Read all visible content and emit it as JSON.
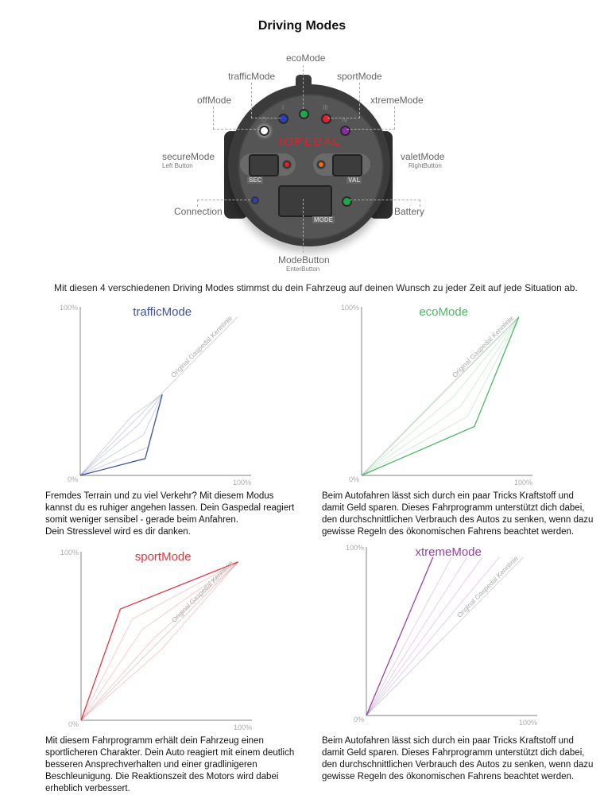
{
  "title": "Driving Modes",
  "device": {
    "brand": "IOPEDAL",
    "labels": {
      "eco": "ecoMode",
      "traffic": "trafficMode",
      "sport": "sportMode",
      "off": "offMode",
      "xtreme": "xtremeMode",
      "secure": "secureMode",
      "secure_sub": "Left Button",
      "valet": "valetMode",
      "valet_sub": "RightButton",
      "connection": "Connection",
      "battery": "Battery",
      "mode_button": "ModeButton",
      "mode_button_sub": "EnterButton"
    },
    "markings": {
      "sec": "SEC",
      "val": "VAL",
      "mode": "MODE",
      "i": "I",
      "ii": "II",
      "iii": "III",
      "iv": "IV",
      "o": "O"
    },
    "led_colors": {
      "off": "#ffffff",
      "traffic": "#2b3fc0",
      "eco": "#1fa84a",
      "sport": "#e8202a",
      "xtreme": "#8a2aa8",
      "secure": "#e8202a",
      "valet": "#f06a10",
      "connection": "#2b3fc0",
      "battery": "#1fa84a"
    }
  },
  "intro": "Mit diesen 4 verschiedenen Driving Modes stimmst du dein Fahrzeug auf deinen Wunsch zu jeder Zeit auf jede Situation ab.",
  "chart_data": [
    {
      "type": "line",
      "title": "trafficMode",
      "color": "#3f51a8",
      "reference_label": "Original Gaspedal Kennlinie",
      "xlim": [
        0,
        100
      ],
      "ylim": [
        0,
        100
      ],
      "tick_labels": {
        "y_top": "100%",
        "origin": "0%",
        "x_right": "100%"
      },
      "reference": [
        [
          0,
          0
        ],
        [
          92,
          94
        ]
      ],
      "series": [
        {
          "values": [
            [
              0,
              0
            ],
            [
              38,
              10
            ],
            [
              48,
              48
            ]
          ]
        }
      ],
      "intermediate": [
        [
          [
            0,
            0
          ],
          [
            40,
            17
          ],
          [
            48,
            48
          ]
        ],
        [
          [
            0,
            0
          ],
          [
            37,
            24
          ],
          [
            48,
            48
          ]
        ],
        [
          [
            0,
            0
          ],
          [
            34,
            30
          ],
          [
            48,
            48
          ]
        ],
        [
          [
            0,
            0
          ],
          [
            30,
            35
          ],
          [
            48,
            48
          ]
        ]
      ]
    },
    {
      "type": "line",
      "title": "ecoMode",
      "color": "#4cb864",
      "reference_label": "Original Gaspedal Kennlinie",
      "xlim": [
        0,
        100
      ],
      "ylim": [
        0,
        100
      ],
      "tick_labels": {
        "y_top": "100%",
        "origin": "0%",
        "x_right": "100%"
      },
      "reference": [
        [
          0,
          0
        ],
        [
          92,
          94
        ]
      ],
      "series": [
        {
          "values": [
            [
              0,
              0
            ],
            [
              66,
              29
            ],
            [
              92,
              94
            ]
          ]
        }
      ],
      "intermediate": [
        [
          [
            0,
            0
          ],
          [
            62,
            35
          ],
          [
            92,
            94
          ]
        ],
        [
          [
            0,
            0
          ],
          [
            58,
            41
          ],
          [
            92,
            94
          ]
        ],
        [
          [
            0,
            0
          ],
          [
            54,
            47
          ],
          [
            92,
            94
          ]
        ],
        [
          [
            0,
            0
          ],
          [
            50,
            52
          ],
          [
            92,
            94
          ]
        ]
      ]
    },
    {
      "type": "line",
      "title": "sportMode",
      "color": "#e8343c",
      "reference_label": "Original Gaspedal Kennlinie",
      "xlim": [
        0,
        100
      ],
      "ylim": [
        0,
        100
      ],
      "tick_labels": {
        "y_top": "100%",
        "origin": "0%",
        "x_right": "100%"
      },
      "reference": [
        [
          0,
          0
        ],
        [
          92,
          94
        ]
      ],
      "series": [
        {
          "values": [
            [
              0,
              0
            ],
            [
              23,
              66
            ],
            [
              92,
              94
            ]
          ]
        }
      ],
      "intermediate": [
        [
          [
            0,
            0
          ],
          [
            30,
            60
          ],
          [
            92,
            94
          ]
        ],
        [
          [
            0,
            0
          ],
          [
            36,
            54
          ],
          [
            92,
            94
          ]
        ],
        [
          [
            0,
            0
          ],
          [
            42,
            48
          ],
          [
            92,
            94
          ]
        ],
        [
          [
            0,
            0
          ],
          [
            47,
            42
          ],
          [
            92,
            94
          ]
        ]
      ]
    },
    {
      "type": "line",
      "title": "xtremeMode",
      "color": "#9b3fa6",
      "reference_label": "Original Gaspedal Kennlinie",
      "xlim": [
        0,
        100
      ],
      "ylim": [
        0,
        100
      ],
      "tick_labels": {
        "y_top": "100%",
        "origin": "0%",
        "x_right": "100%"
      },
      "reference": [
        [
          0,
          0
        ],
        [
          92,
          94
        ]
      ],
      "series": [
        {
          "values": [
            [
              0,
              0
            ],
            [
              39,
              94
            ]
          ]
        }
      ],
      "intermediate": [
        [
          [
            0,
            0
          ],
          [
            50,
            94
          ]
        ],
        [
          [
            0,
            0
          ],
          [
            59,
            94
          ]
        ],
        [
          [
            0,
            0
          ],
          [
            68,
            94
          ]
        ],
        [
          [
            0,
            0
          ],
          [
            78,
            94
          ]
        ]
      ]
    }
  ],
  "paragraphs": {
    "traffic": [
      "Fremdes Terrain und zu viel Verkehr? Mit diesem Modus",
      "kannst du es ruhiger angehen lassen. Dein Gaspedal reagiert",
      "somit weniger sensibel - gerade beim Anfahren.",
      "Dein Stresslevel wird es dir danken."
    ],
    "eco": [
      "Beim Autofahren lässt sich durch ein paar Tricks Kraftstoff und",
      "damit Geld sparen. Dieses Fahrprogramm unterstützt dich dabei,",
      "den durchschnittlichen Verbrauch des Autos zu senken,  wenn dazu",
      "gewisse Regeln des ökonomischen Fahrens beachtet werden."
    ],
    "sport": [
      "Mit diesem Fahrprogramm erhält dein Fahrzeug einen",
      "sportlicheren Charakter. Dein Auto reagiert mit einem deutlich",
      "besseren Ansprechverhalten und einer gradlinigeren",
      "Beschleunigung. Die Reaktionszeit des Motors wird dabei",
      "erheblich verbessert."
    ],
    "xtreme": [
      "Beim Autofahren lässt sich durch ein paar Tricks Kraftstoff und",
      "damit Geld sparen. Dieses Fahrprogramm unterstützt dich dabei,",
      "den durchschnittlichen Verbrauch des Autos zu senken,  wenn dazu",
      "gewisse Regeln des ökonomischen Fahrens beachtet werden."
    ]
  }
}
